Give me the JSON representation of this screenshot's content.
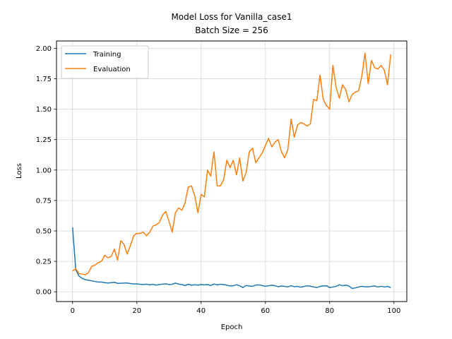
{
  "chart_data": {
    "type": "line",
    "title": "Model Loss for Vanilla_case1",
    "subtitle": "Batch Size = 256",
    "xlabel": "Epoch",
    "ylabel": "Loss",
    "xlim": [
      -5,
      104
    ],
    "ylim": [
      -0.08,
      2.06
    ],
    "xticks": [
      0,
      20,
      40,
      60,
      80,
      100
    ],
    "xtick_labels": [
      "0",
      "20",
      "40",
      "60",
      "80",
      "100"
    ],
    "yticks": [
      0,
      0.25,
      0.5,
      0.75,
      1.0,
      1.25,
      1.5,
      1.75,
      2.0
    ],
    "ytick_labels": [
      "0.00",
      "0.25",
      "0.50",
      "0.75",
      "1.00",
      "1.25",
      "1.50",
      "1.75",
      "2.00"
    ],
    "grid": true,
    "legend_position": "top-left",
    "series": [
      {
        "name": "Training",
        "color": "#1f77b4",
        "x": [
          0,
          1,
          2,
          3,
          4,
          5,
          6,
          7,
          8,
          9,
          10,
          11,
          12,
          13,
          14,
          15,
          16,
          17,
          18,
          19,
          20,
          21,
          22,
          23,
          24,
          25,
          26,
          27,
          28,
          29,
          30,
          31,
          32,
          33,
          34,
          35,
          36,
          37,
          38,
          39,
          40,
          41,
          42,
          43,
          44,
          45,
          46,
          47,
          48,
          49,
          50,
          51,
          52,
          53,
          54,
          55,
          56,
          57,
          58,
          59,
          60,
          61,
          62,
          63,
          64,
          65,
          66,
          67,
          68,
          69,
          70,
          71,
          72,
          73,
          74,
          75,
          76,
          77,
          78,
          79,
          80,
          81,
          82,
          83,
          84,
          85,
          86,
          87,
          88,
          89,
          90,
          91,
          92,
          93,
          94,
          95,
          96,
          97,
          98,
          99
        ],
        "values": [
          0.53,
          0.18,
          0.13,
          0.11,
          0.1,
          0.095,
          0.09,
          0.085,
          0.08,
          0.08,
          0.075,
          0.072,
          0.075,
          0.078,
          0.07,
          0.07,
          0.072,
          0.073,
          0.068,
          0.065,
          0.065,
          0.062,
          0.06,
          0.063,
          0.058,
          0.062,
          0.055,
          0.06,
          0.063,
          0.066,
          0.06,
          0.062,
          0.072,
          0.063,
          0.06,
          0.052,
          0.062,
          0.055,
          0.058,
          0.055,
          0.06,
          0.057,
          0.06,
          0.052,
          0.064,
          0.058,
          0.062,
          0.06,
          0.055,
          0.048,
          0.05,
          0.058,
          0.05,
          0.035,
          0.052,
          0.048,
          0.045,
          0.055,
          0.057,
          0.052,
          0.045,
          0.05,
          0.055,
          0.05,
          0.042,
          0.048,
          0.045,
          0.04,
          0.05,
          0.042,
          0.045,
          0.038,
          0.044,
          0.05,
          0.046,
          0.04,
          0.035,
          0.045,
          0.048,
          0.05,
          0.035,
          0.04,
          0.045,
          0.058,
          0.05,
          0.055,
          0.048,
          0.028,
          0.032,
          0.04,
          0.045,
          0.042,
          0.04,
          0.045,
          0.048,
          0.04,
          0.045,
          0.04,
          0.044,
          0.035
        ]
      },
      {
        "name": "Evaluation",
        "color": "#ff7f0e",
        "x": [
          0,
          1,
          2,
          3,
          4,
          5,
          6,
          7,
          8,
          9,
          10,
          11,
          12,
          13,
          14,
          15,
          16,
          17,
          18,
          19,
          20,
          21,
          22,
          23,
          24,
          25,
          26,
          27,
          28,
          29,
          30,
          31,
          32,
          33,
          34,
          35,
          36,
          37,
          38,
          39,
          40,
          41,
          42,
          43,
          44,
          45,
          46,
          47,
          48,
          49,
          50,
          51,
          52,
          53,
          54,
          55,
          56,
          57,
          58,
          59,
          60,
          61,
          62,
          63,
          64,
          65,
          66,
          67,
          68,
          69,
          70,
          71,
          72,
          73,
          74,
          75,
          76,
          77,
          78,
          79,
          80,
          81,
          82,
          83,
          84,
          85,
          86,
          87,
          88,
          89,
          90,
          91,
          92,
          93,
          94,
          95,
          96,
          97,
          98,
          99
        ],
        "values": [
          0.17,
          0.19,
          0.15,
          0.145,
          0.14,
          0.16,
          0.21,
          0.22,
          0.24,
          0.25,
          0.3,
          0.28,
          0.29,
          0.35,
          0.26,
          0.42,
          0.39,
          0.31,
          0.38,
          0.46,
          0.48,
          0.48,
          0.49,
          0.46,
          0.49,
          0.54,
          0.55,
          0.57,
          0.63,
          0.66,
          0.58,
          0.49,
          0.65,
          0.69,
          0.67,
          0.73,
          0.86,
          0.87,
          0.79,
          0.65,
          0.8,
          0.78,
          1.0,
          0.95,
          1.15,
          0.87,
          0.87,
          0.92,
          1.08,
          1.02,
          1.08,
          0.96,
          1.1,
          0.91,
          0.98,
          1.15,
          1.18,
          1.06,
          1.1,
          1.14,
          1.2,
          1.26,
          1.19,
          1.23,
          1.25,
          1.15,
          1.1,
          1.17,
          1.42,
          1.27,
          1.37,
          1.39,
          1.38,
          1.36,
          1.38,
          1.58,
          1.57,
          1.78,
          1.58,
          1.53,
          1.5,
          1.86,
          1.68,
          1.59,
          1.7,
          1.66,
          1.56,
          1.62,
          1.64,
          1.65,
          1.77,
          1.96,
          1.71,
          1.9,
          1.84,
          1.83,
          1.86,
          1.82,
          1.7,
          1.95
        ]
      }
    ]
  }
}
